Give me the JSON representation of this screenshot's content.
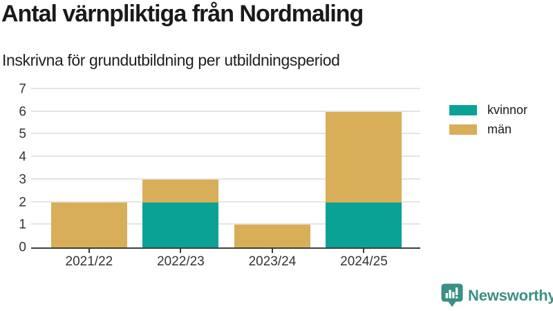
{
  "header": {
    "title": "Antal värnpliktiga från Nordmaling",
    "subtitle": "Inskrivna för grundutbildning per utbildningsperiod"
  },
  "chart_data": {
    "type": "bar",
    "stacked": true,
    "title": "Antal värnpliktiga från Nordmaling",
    "subtitle": "Inskrivna för grundutbildning per utbildningsperiod",
    "categories": [
      "2021/22",
      "2022/23",
      "2023/24",
      "2024/25"
    ],
    "series": [
      {
        "name": "kvinnor",
        "color": "#0ba296",
        "values": [
          0,
          2,
          0,
          2
        ]
      },
      {
        "name": "män",
        "color": "#d9ae58",
        "values": [
          2,
          1,
          1,
          4
        ]
      }
    ],
    "xlabel": "",
    "ylabel": "",
    "ylim": [
      0,
      7
    ],
    "yticks": [
      0,
      1,
      2,
      3,
      4,
      5,
      6,
      7
    ],
    "grid": true,
    "legend_position": "right"
  },
  "branding": {
    "name": "Newsworthy",
    "color": "#3a8f86",
    "icon": "bar-chart-speech-bubble-icon"
  }
}
